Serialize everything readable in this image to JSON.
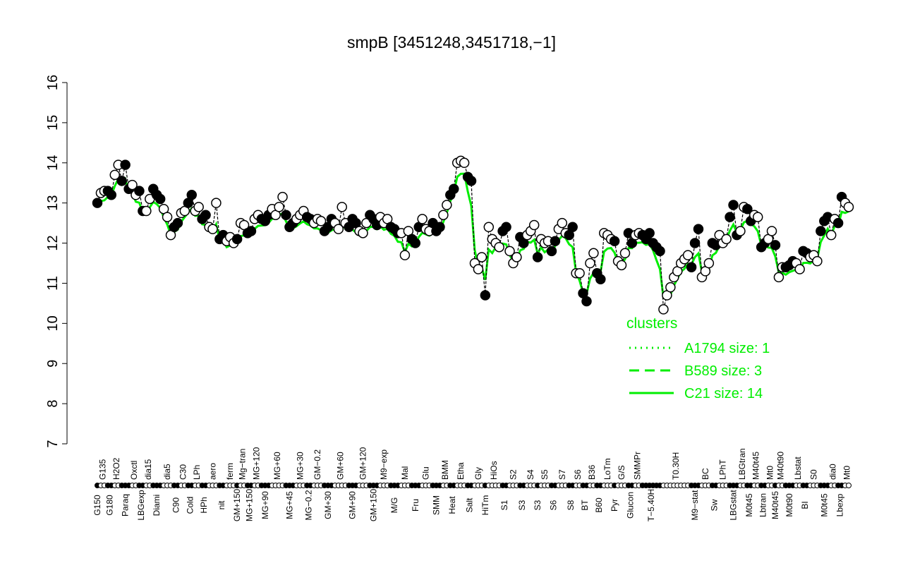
{
  "chart_data": {
    "type": "scatter",
    "title": "smpB [3451248,3451718,−1]",
    "xlabel": "",
    "ylabel": "",
    "ylim": [
      7,
      16
    ],
    "yticks": [
      7,
      8,
      9,
      10,
      11,
      12,
      13,
      14,
      15,
      16
    ],
    "grid": false,
    "colors": {
      "points": "#000000",
      "cluster_line": "#00ee00",
      "legend_text": "#00ee00"
    },
    "legend": {
      "title": "clusters",
      "placement": "bottom-right",
      "entries": [
        {
          "label": "A1794 size: 1",
          "style": "dotted"
        },
        {
          "label": "B589 size: 3",
          "style": "dashed"
        },
        {
          "label": "C21 size: 14",
          "style": "solid"
        }
      ]
    },
    "groups": [
      {
        "label": "G150",
        "values": [
          13.0
        ]
      },
      {
        "label": "G135",
        "values": [
          13.25,
          13.3
        ]
      },
      {
        "label": "G180",
        "values": [
          13.3,
          13.2
        ]
      },
      {
        "label": "H2O2",
        "values": [
          13.7,
          13.95
        ]
      },
      {
        "label": "Paraq",
        "values": [
          13.55,
          13.95,
          13.35
        ]
      },
      {
        "label": "Oxctl",
        "values": [
          13.45,
          13.2
        ]
      },
      {
        "label": "LBGexp",
        "values": [
          13.3,
          12.8
        ]
      },
      {
        "label": "dia15",
        "values": [
          12.8,
          13.1
        ]
      },
      {
        "label": "Diami",
        "values": [
          13.35,
          13.2,
          13.1
        ]
      },
      {
        "label": "dia5",
        "values": [
          12.85,
          12.65,
          12.2
        ]
      },
      {
        "label": "C90",
        "values": [
          12.4,
          12.5
        ]
      },
      {
        "label": "C30",
        "values": [
          12.75,
          12.8
        ]
      },
      {
        "label": "Cold",
        "values": [
          13.0,
          13.2
        ]
      },
      {
        "label": "LPh",
        "values": [
          12.8,
          12.9
        ]
      },
      {
        "label": "HPh",
        "values": [
          12.6,
          12.7
        ]
      },
      {
        "label": "aero",
        "values": [
          12.4,
          12.35,
          13.0
        ]
      },
      {
        "label": "nit",
        "values": [
          12.1,
          12.2
        ]
      },
      {
        "label": "ferm",
        "values": [
          12.05,
          12.15,
          12.0
        ]
      },
      {
        "label": "GM+150",
        "values": [
          12.1
        ]
      },
      {
        "label": "Mg−tran",
        "values": [
          12.5,
          12.45
        ]
      },
      {
        "label": "MG+150",
        "values": [
          12.25,
          12.3
        ]
      },
      {
        "label": "MG+120",
        "values": [
          12.6,
          12.7
        ]
      },
      {
        "label": "MG+90",
        "values": [
          12.6,
          12.55,
          12.7
        ]
      },
      {
        "label": "MG+60",
        "values": [
          12.85,
          12.7,
          12.9,
          13.15
        ]
      },
      {
        "label": "MG+45",
        "values": [
          12.7,
          12.4,
          12.5
        ]
      },
      {
        "label": "MG+30",
        "values": [
          12.6,
          12.7,
          12.8
        ]
      },
      {
        "label": "MG−0.2",
        "values": [
          12.65,
          12.6
        ]
      },
      {
        "label": "GM−0.2",
        "values": [
          12.5,
          12.6,
          12.55
        ]
      },
      {
        "label": "GM+30",
        "values": [
          12.3,
          12.4,
          12.6
        ]
      },
      {
        "label": "GM+60",
        "values": [
          12.5,
          12.35,
          12.9,
          12.5
        ]
      },
      {
        "label": "GM+90",
        "values": [
          12.4,
          12.6,
          12.5
        ]
      },
      {
        "label": "GM+120",
        "values": [
          12.3,
          12.25,
          12.5
        ]
      },
      {
        "label": "GM+150",
        "values": [
          12.7,
          12.6,
          12.45
        ]
      },
      {
        "label": "M9−exp",
        "values": [
          12.65,
          12.5,
          12.6
        ]
      },
      {
        "label": "M/G",
        "values": [
          12.4,
          12.35,
          12.25
        ]
      },
      {
        "label": "Mal",
        "values": [
          12.25,
          11.7,
          12.3
        ]
      },
      {
        "label": "Fru",
        "values": [
          12.1,
          12.0,
          12.4
        ]
      },
      {
        "label": "Glu",
        "values": [
          12.6,
          12.35,
          12.3
        ]
      },
      {
        "label": "SMM",
        "values": [
          12.5,
          12.3,
          12.4
        ]
      },
      {
        "label": "BMM",
        "values": [
          12.7,
          12.95
        ]
      },
      {
        "label": "Heat",
        "values": [
          13.2,
          13.35
        ]
      },
      {
        "label": "Etha",
        "values": [
          14.0,
          14.05,
          14.0
        ]
      },
      {
        "label": "Salt",
        "values": [
          13.65,
          13.55
        ]
      },
      {
        "label": "Gly",
        "values": [
          11.5,
          11.35,
          11.65
        ]
      },
      {
        "label": "HiTm",
        "values": [
          10.7
        ]
      },
      {
        "label": "HiOs",
        "values": [
          12.4,
          12.1,
          12.0,
          11.9
        ]
      },
      {
        "label": "S1",
        "values": [
          12.3,
          12.4
        ]
      },
      {
        "label": "S2",
        "values": [
          11.8,
          11.5,
          11.65
        ]
      },
      {
        "label": "S3",
        "values": [
          12.15,
          12.0
        ]
      },
      {
        "label": "S4",
        "values": [
          12.2,
          12.3,
          12.45
        ]
      },
      {
        "label": "S3",
        "values": [
          11.65
        ]
      },
      {
        "label": "S5",
        "values": [
          12.1,
          12.0,
          12.05
        ]
      },
      {
        "label": "S6",
        "values": [
          11.8,
          12.05
        ]
      },
      {
        "label": "S7",
        "values": [
          12.35,
          12.5,
          12.25
        ]
      },
      {
        "label": "S8",
        "values": [
          12.2,
          12.4
        ]
      },
      {
        "label": "S6",
        "values": [
          11.25,
          11.25
        ]
      },
      {
        "label": "BT",
        "values": [
          10.75,
          10.55
        ]
      },
      {
        "label": "B36",
        "values": [
          11.5,
          11.75
        ]
      },
      {
        "label": "B60",
        "values": [
          11.25,
          11.1
        ]
      },
      {
        "label": "LoTm",
        "values": [
          12.25,
          12.2,
          12.1
        ]
      },
      {
        "label": "Pyr",
        "values": [
          12.05
        ]
      },
      {
        "label": "G/S",
        "values": [
          11.55,
          11.45,
          11.75
        ]
      },
      {
        "label": "Glucon",
        "values": [
          12.25,
          12.0
        ]
      },
      {
        "label": "SMMPr",
        "values": [
          12.2,
          12.25
        ]
      },
      {
        "label": "T−5.40H",
        "values": [
          12.2,
          12.1,
          12.25,
          12.0,
          11.9,
          11.8
        ]
      },
      {
        "label": "T0.30H",
        "values": [
          10.35,
          10.7,
          10.9,
          11.15,
          11.3,
          11.5,
          11.6,
          11.7
        ]
      },
      {
        "label": "M9−stat",
        "values": [
          11.4,
          12.0,
          12.35
        ]
      },
      {
        "label": "BC",
        "values": [
          11.15,
          11.3,
          11.5
        ]
      },
      {
        "label": "Sw",
        "values": [
          12.0,
          11.95
        ]
      },
      {
        "label": "LPhT",
        "values": [
          12.2,
          12.0,
          12.1
        ]
      },
      {
        "label": "LBGstat",
        "values": [
          12.65,
          12.95,
          12.2
        ]
      },
      {
        "label": "LBGtran",
        "values": [
          12.3,
          12.9
        ]
      },
      {
        "label": "M0t45",
        "values": [
          12.85,
          12.55
        ]
      },
      {
        "label": "M40t45",
        "values": [
          12.7,
          12.65
        ]
      },
      {
        "label": "Lbtran",
        "values": [
          11.9,
          12.0
        ]
      },
      {
        "label": "Mt0",
        "values": [
          12.1,
          12.3
        ]
      },
      {
        "label": "M40t45",
        "values": [
          11.95
        ]
      },
      {
        "label": "M40t90",
        "values": [
          11.15,
          11.4
        ]
      },
      {
        "label": "M0t90",
        "values": [
          11.4,
          11.45,
          11.55
        ]
      },
      {
        "label": "Lbstat",
        "values": [
          11.5,
          11.35
        ]
      },
      {
        "label": "BI",
        "values": [
          11.8,
          11.75
        ]
      },
      {
        "label": "S0",
        "values": [
          11.65,
          11.7,
          11.55
        ]
      },
      {
        "label": "M0t45",
        "values": [
          12.3,
          12.55,
          12.65
        ]
      },
      {
        "label": "dia0",
        "values": [
          12.2,
          12.6
        ]
      },
      {
        "label": "Lbexp",
        "values": [
          12.5,
          13.15
        ]
      },
      {
        "label": "Mt0",
        "values": [
          13.0,
          12.9
        ]
      }
    ]
  }
}
